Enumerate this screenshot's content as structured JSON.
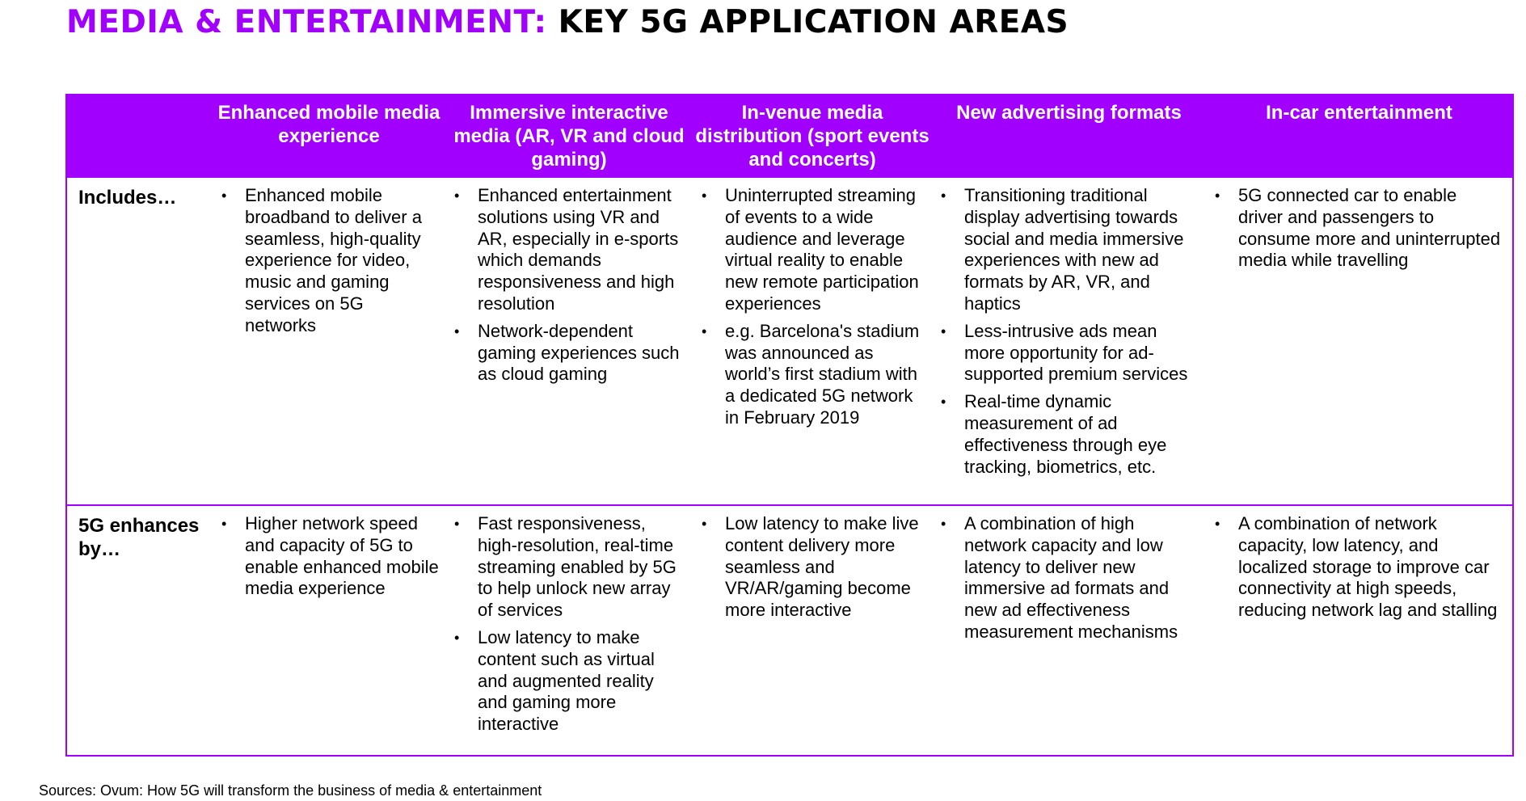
{
  "title": {
    "accent": "MEDIA & ENTERTAINMENT:",
    "rest": " KEY 5G APPLICATION AREAS"
  },
  "colors": {
    "accent": "#a100ff",
    "header_text": "#ffffff"
  },
  "table": {
    "headers": [
      "",
      "Enhanced mobile media experience",
      "Immersive interactive media (AR, VR and cloud gaming)",
      "In-venue media distribution (sport events and concerts)",
      "New advertising formats",
      "In-car entertainment"
    ],
    "rows": [
      {
        "label": "Includes…",
        "cells": [
          [
            "Enhanced mobile broadband to deliver a seamless, high-quality experience for video, music and gaming services on 5G networks"
          ],
          [
            "Enhanced entertainment solutions using VR and AR, especially in e-sports which demands responsiveness and high resolution",
            "Network-dependent gaming experiences such as cloud gaming"
          ],
          [
            "Uninterrupted streaming of events to a wide audience and leverage virtual reality to enable new remote participation experiences",
            "e.g. Barcelona's stadium was announced as world’s first stadium with a dedicated 5G network in February 2019"
          ],
          [
            "Transitioning traditional display advertising towards social and media immersive experiences with new ad formats by AR, VR, and haptics",
            "Less-intrusive ads mean more opportunity for ad-supported premium services",
            "Real-time dynamic measurement of ad effectiveness through eye tracking, biometrics, etc."
          ],
          [
            "5G connected car to enable driver and passengers to consume more and uninterrupted media while travelling"
          ]
        ]
      },
      {
        "label": "5G enhances by…",
        "cells": [
          [
            "Higher network speed and capacity of 5G to enable enhanced mobile media experience"
          ],
          [
            "Fast responsiveness, high-resolution, real-time streaming enabled by 5G to help unlock new array of services",
            "Low latency to make content such as virtual and augmented reality and gaming more interactive"
          ],
          [
            "Low latency to make live content delivery more seamless and VR/AR/gaming become more interactive"
          ],
          [
            "A combination of high network capacity and low latency to deliver new immersive ad formats and new ad effectiveness measurement mechanisms"
          ],
          [
            "A combination of network capacity, low latency, and localized storage to improve car connectivity at high speeds, reducing network lag and stalling"
          ]
        ]
      }
    ]
  },
  "bullet_glyph": "•",
  "sources": "Sources: Ovum: How 5G will transform the business of media & entertainment"
}
